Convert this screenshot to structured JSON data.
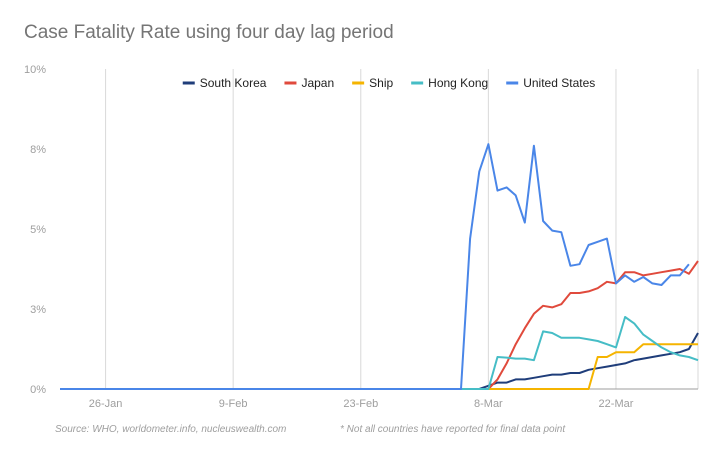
{
  "chart_data": {
    "type": "line",
    "title": "Case Fatality Rate using four day lag period",
    "y_tick_labels": [
      "0%",
      "3%",
      "5%",
      "8%",
      "10%"
    ],
    "y_tick_values": [
      0,
      2.5,
      5,
      7.5,
      10
    ],
    "ylim": [
      0,
      10
    ],
    "x_tick_labels": [
      "26-Jan",
      "9-Feb",
      "23-Feb",
      "8-Mar",
      "22-Mar"
    ],
    "x_tick_values": [
      "2020-01-26",
      "2020-02-09",
      "2020-02-23",
      "2020-03-08",
      "2020-03-22"
    ],
    "xlim": [
      "2020-01-21",
      "2020-03-31"
    ],
    "grid": "vertical",
    "legend_position": "top",
    "footnote_source": "Source: WHO, worldometer.info, nucleuswealth.com",
    "footnote_note": "* Not all countries have reported for final data point",
    "series": [
      {
        "name": "South Korea",
        "color": "#1f3d7a",
        "points": [
          [
            "2020-03-07",
            0.0
          ],
          [
            "2020-03-08",
            0.1
          ],
          [
            "2020-03-09",
            0.2
          ],
          [
            "2020-03-10",
            0.2
          ],
          [
            "2020-03-11",
            0.3
          ],
          [
            "2020-03-12",
            0.3
          ],
          [
            "2020-03-13",
            0.35
          ],
          [
            "2020-03-14",
            0.4
          ],
          [
            "2020-03-15",
            0.45
          ],
          [
            "2020-03-16",
            0.45
          ],
          [
            "2020-03-17",
            0.5
          ],
          [
            "2020-03-18",
            0.5
          ],
          [
            "2020-03-19",
            0.6
          ],
          [
            "2020-03-20",
            0.65
          ],
          [
            "2020-03-21",
            0.7
          ],
          [
            "2020-03-22",
            0.75
          ],
          [
            "2020-03-23",
            0.8
          ],
          [
            "2020-03-24",
            0.9
          ],
          [
            "2020-03-25",
            0.95
          ],
          [
            "2020-03-26",
            1.0
          ],
          [
            "2020-03-27",
            1.05
          ],
          [
            "2020-03-28",
            1.1
          ],
          [
            "2020-03-29",
            1.15
          ],
          [
            "2020-03-30",
            1.25
          ],
          [
            "2020-03-31",
            1.75
          ]
        ]
      },
      {
        "name": "Japan",
        "color": "#e04a3c",
        "points": [
          [
            "2020-03-08",
            0.0
          ],
          [
            "2020-03-09",
            0.3
          ],
          [
            "2020-03-10",
            0.8
          ],
          [
            "2020-03-11",
            1.4
          ],
          [
            "2020-03-12",
            1.9
          ],
          [
            "2020-03-13",
            2.35
          ],
          [
            "2020-03-14",
            2.6
          ],
          [
            "2020-03-15",
            2.55
          ],
          [
            "2020-03-16",
            2.65
          ],
          [
            "2020-03-17",
            3.0
          ],
          [
            "2020-03-18",
            3.0
          ],
          [
            "2020-03-19",
            3.05
          ],
          [
            "2020-03-20",
            3.15
          ],
          [
            "2020-03-21",
            3.35
          ],
          [
            "2020-03-22",
            3.3
          ],
          [
            "2020-03-23",
            3.65
          ],
          [
            "2020-03-24",
            3.65
          ],
          [
            "2020-03-25",
            3.55
          ],
          [
            "2020-03-26",
            3.6
          ],
          [
            "2020-03-27",
            3.65
          ],
          [
            "2020-03-28",
            3.7
          ],
          [
            "2020-03-29",
            3.75
          ],
          [
            "2020-03-30",
            3.6
          ],
          [
            "2020-03-31",
            4.0
          ]
        ]
      },
      {
        "name": "Ship",
        "color": "#f5b400",
        "points": [
          [
            "2020-03-07",
            0.0
          ],
          [
            "2020-03-19",
            0.0
          ],
          [
            "2020-03-20",
            1.0
          ],
          [
            "2020-03-21",
            1.0
          ],
          [
            "2020-03-22",
            1.15
          ],
          [
            "2020-03-23",
            1.15
          ],
          [
            "2020-03-24",
            1.15
          ],
          [
            "2020-03-25",
            1.4
          ],
          [
            "2020-03-26",
            1.4
          ],
          [
            "2020-03-27",
            1.4
          ],
          [
            "2020-03-28",
            1.4
          ],
          [
            "2020-03-29",
            1.4
          ],
          [
            "2020-03-30",
            1.4
          ],
          [
            "2020-03-31",
            1.4
          ]
        ]
      },
      {
        "name": "Hong Kong",
        "color": "#46bdc6",
        "points": [
          [
            "2020-01-21",
            0.0
          ],
          [
            "2020-03-07",
            0.0
          ],
          [
            "2020-03-08",
            0.0
          ],
          [
            "2020-03-09",
            1.0
          ],
          [
            "2020-03-10",
            0.98
          ],
          [
            "2020-03-11",
            0.95
          ],
          [
            "2020-03-12",
            0.95
          ],
          [
            "2020-03-13",
            0.9
          ],
          [
            "2020-03-14",
            1.8
          ],
          [
            "2020-03-15",
            1.75
          ],
          [
            "2020-03-16",
            1.6
          ],
          [
            "2020-03-17",
            1.6
          ],
          [
            "2020-03-18",
            1.6
          ],
          [
            "2020-03-19",
            1.55
          ],
          [
            "2020-03-20",
            1.5
          ],
          [
            "2020-03-21",
            1.4
          ],
          [
            "2020-03-22",
            1.3
          ],
          [
            "2020-03-23",
            2.25
          ],
          [
            "2020-03-24",
            2.05
          ],
          [
            "2020-03-25",
            1.7
          ],
          [
            "2020-03-26",
            1.5
          ],
          [
            "2020-03-27",
            1.3
          ],
          [
            "2020-03-28",
            1.15
          ],
          [
            "2020-03-29",
            1.05
          ],
          [
            "2020-03-30",
            1.0
          ],
          [
            "2020-03-31",
            0.9
          ]
        ]
      },
      {
        "name": "United States",
        "color": "#4a86e8",
        "points": [
          [
            "2020-01-21",
            0.0
          ],
          [
            "2020-03-05",
            0.0
          ],
          [
            "2020-03-06",
            4.7
          ],
          [
            "2020-03-07",
            6.8
          ],
          [
            "2020-03-08",
            7.65
          ],
          [
            "2020-03-09",
            6.2
          ],
          [
            "2020-03-10",
            6.3
          ],
          [
            "2020-03-11",
            6.05
          ],
          [
            "2020-03-12",
            5.2
          ],
          [
            "2020-03-13",
            7.6
          ],
          [
            "2020-03-14",
            5.25
          ],
          [
            "2020-03-15",
            4.95
          ],
          [
            "2020-03-16",
            4.9
          ],
          [
            "2020-03-17",
            3.85
          ],
          [
            "2020-03-18",
            3.9
          ],
          [
            "2020-03-19",
            4.5
          ],
          [
            "2020-03-20",
            4.6
          ],
          [
            "2020-03-21",
            4.7
          ],
          [
            "2020-03-22",
            3.3
          ],
          [
            "2020-03-23",
            3.55
          ],
          [
            "2020-03-24",
            3.35
          ],
          [
            "2020-03-25",
            3.5
          ],
          [
            "2020-03-26",
            3.3
          ],
          [
            "2020-03-27",
            3.25
          ],
          [
            "2020-03-28",
            3.55
          ],
          [
            "2020-03-29",
            3.55
          ],
          [
            "2020-03-30",
            3.9
          ]
        ]
      }
    ]
  }
}
